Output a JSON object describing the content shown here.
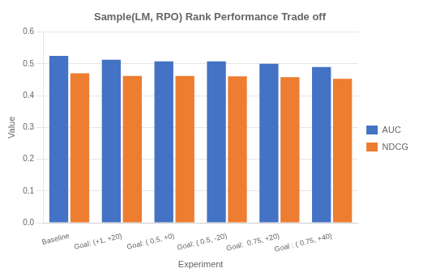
{
  "chart_data": {
    "type": "bar",
    "title": "Sample(LM, RPO) Rank Performance Trade off",
    "xlabel": "Experiment",
    "ylabel": "Value",
    "categories": [
      "Baseline",
      "Goal: (+1, +20)",
      "Goal: ( 0.5, +0)",
      "Goal: ( 0.5, -20)",
      "Goal:  0.75, +20)",
      "Goal : ( 0.75, +40)"
    ],
    "series": [
      {
        "name": "AUC",
        "color": "#4472C4",
        "values": [
          0.525,
          0.513,
          0.508,
          0.508,
          0.5,
          0.49
        ]
      },
      {
        "name": "NDCG",
        "color": "#ED7D31",
        "values": [
          0.47,
          0.462,
          0.462,
          0.461,
          0.458,
          0.453
        ]
      }
    ],
    "ylim": [
      0,
      0.6
    ],
    "yticks": [
      {
        "value": 0,
        "label": "0.0"
      },
      0.1,
      0.2,
      0.3,
      0.4,
      0.5,
      0.6
    ],
    "grid": true,
    "legend": "right"
  }
}
